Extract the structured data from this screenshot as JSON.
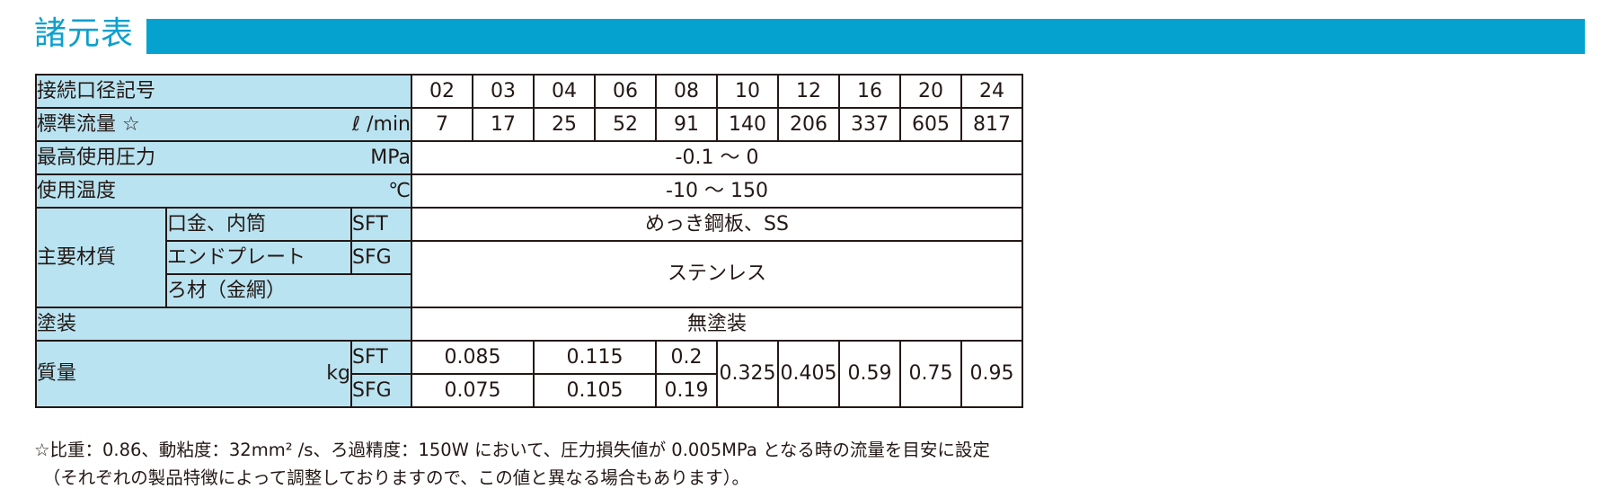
{
  "title": "諸元表",
  "colors": {
    "accent": "#05a2cf",
    "header_cell": "#b9e3f1",
    "border": "#231815"
  },
  "table": {
    "size_label": "接続口径記号",
    "sizes": [
      "02",
      "03",
      "04",
      "06",
      "08",
      "10",
      "12",
      "16",
      "20",
      "24"
    ],
    "flow_label": "標準流量 ☆",
    "flow_unit": "ℓ /min",
    "flows": [
      "7",
      "17",
      "25",
      "52",
      "91",
      "140",
      "206",
      "337",
      "605",
      "817"
    ],
    "pressure_label": "最高使用圧力",
    "pressure_unit": "MPa",
    "pressure_value": "-0.1 ～ 0",
    "temp_label": "使用温度",
    "temp_unit": "℃",
    "temp_value": "-10 ～ 150",
    "material_label": "主要材質",
    "material_rows": {
      "cap": "口金、内筒",
      "end_plate": "エンドプレート",
      "filter": "ろ材（金網）",
      "sft": "SFT",
      "sfg": "SFG",
      "sft_value": "めっき鋼板、SS",
      "sfg_value": "ステンレス"
    },
    "coating_label": "塗装",
    "coating_value": "無塗装",
    "mass_label": "質量",
    "mass_unit": "kg",
    "mass_sft": "SFT",
    "mass_sfg": "SFG",
    "mass_sft_values": [
      "0.085",
      "0.115",
      "0.2"
    ],
    "mass_sfg_values": [
      "0.075",
      "0.105",
      "0.19"
    ],
    "mass_common": [
      "0.325",
      "0.405",
      "0.59",
      "0.75",
      "0.95"
    ]
  },
  "notes": {
    "line1": "☆比重：0.86、動粘度：32mm² /s、ろ過精度：150W において、圧力損失値が 0.005MPa となる時の流量を目安に設定",
    "line2": "　（それぞれの製品特徴によって調整しておりますので、この値と異なる場合もあります）。"
  }
}
